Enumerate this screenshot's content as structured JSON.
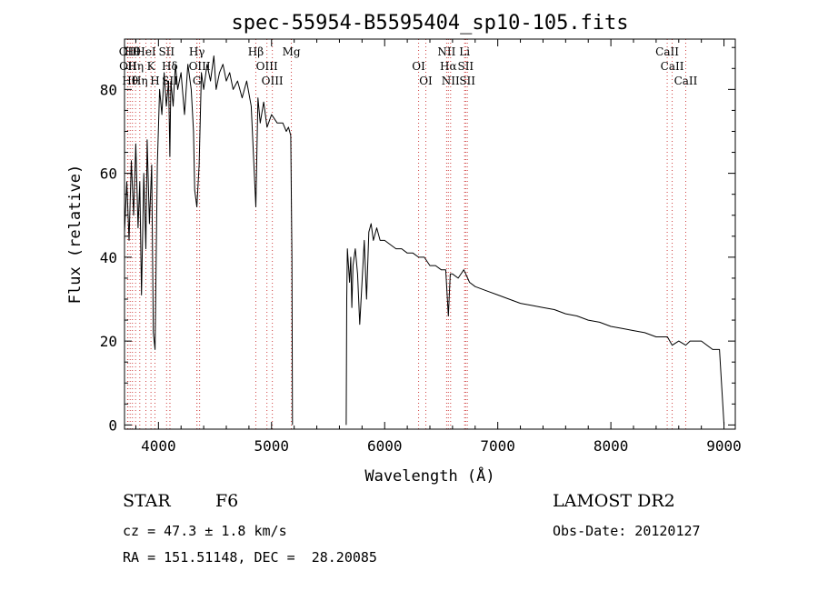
{
  "chart_data": {
    "type": "line",
    "title": "spec-55954-B5595404_sp10-105.fits",
    "xlabel": "Wavelength (Å)",
    "ylabel": "Flux (relative)",
    "xlim": [
      3700,
      9100
    ],
    "ylim": [
      -1,
      92
    ],
    "xticks": [
      4000,
      5000,
      6000,
      7000,
      8000,
      9000
    ],
    "yticks": [
      0,
      20,
      40,
      60,
      80
    ],
    "grid": false,
    "series": [
      {
        "segments": [
          {
            "x": [
              3700,
              3720,
              3740,
              3760,
              3780,
              3800,
              3820,
              3835,
              3850,
              3870,
              3889,
              3900,
              3920,
              3940,
              3955,
              3970,
              3990,
              4010,
              4030,
              4050,
              4070,
              4090,
              4101,
              4110,
              4130,
              4150,
              4170,
              4200,
              4230,
              4260,
              4290,
              4310,
              4320,
              4340,
              4360,
              4380,
              4400,
              4430,
              4460,
              4490,
              4510,
              4540,
              4570,
              4600,
              4630,
              4660,
              4700,
              4740,
              4780,
              4820,
              4861,
              4880,
              4900,
              4930,
              4960,
              5000,
              5050,
              5100,
              5130,
              5150,
              5170,
              5180,
              5185
            ],
            "y": [
              46,
              58,
              44,
              63,
              50,
              67,
              47,
              58,
              31,
              60,
              42,
              68,
              48,
              62,
              22,
              18,
              62,
              80,
              74,
              84,
              76,
              82,
              64,
              82,
              76,
              86,
              80,
              84,
              74,
              86,
              80,
              70,
              56,
              52,
              62,
              84,
              80,
              86,
              82,
              88,
              80,
              84,
              86,
              82,
              84,
              80,
              82,
              78,
              82,
              76,
              52,
              78,
              72,
              77,
              71,
              74,
              72,
              72,
              70,
              71,
              69,
              40,
              0
            ]
          },
          {
            "x": [
              5660,
              5665,
              5670,
              5680,
              5690,
              5700,
              5710,
              5720,
              5740,
              5760,
              5780,
              5800,
              5820,
              5840,
              5860,
              5880,
              5900,
              5930,
              5960,
              6000,
              6050,
              6100,
              6150,
              6200,
              6250,
              6300,
              6350,
              6400,
              6450,
              6500,
              6540,
              6563,
              6580,
              6600,
              6650,
              6700,
              6750,
              6800,
              6900,
              7000,
              7100,
              7200,
              7300,
              7400,
              7500,
              7600,
              7700,
              7800,
              7900,
              8000,
              8100,
              8200,
              8300,
              8400,
              8500,
              8542,
              8600,
              8662,
              8700,
              8800,
              8900,
              8960,
              9000
            ],
            "y": [
              0,
              30,
              42,
              38,
              34,
              40,
              28,
              38,
              42,
              36,
              24,
              34,
              44,
              30,
              46,
              48,
              44,
              47,
              44,
              44,
              43,
              42,
              42,
              41,
              41,
              40,
              40,
              38,
              38,
              37,
              37,
              26,
              36,
              36,
              35,
              37,
              34,
              33,
              32,
              31,
              30,
              29,
              28.5,
              28,
              27.5,
              26.5,
              26,
              25,
              24.5,
              23.5,
              23,
              22.5,
              22,
              21,
              21,
              19,
              20,
              19,
              20,
              20,
              18,
              18,
              0
            ]
          }
        ]
      }
    ],
    "lines": [
      {
        "x": 3727,
        "label": "OII"
      },
      {
        "x": 3730,
        "label": "OII"
      },
      {
        "x": 3750,
        "label": "Hθ"
      },
      {
        "x": 3770,
        "label": "Hθ"
      },
      {
        "x": 3798,
        "label": "Hη"
      },
      {
        "x": 3835,
        "label": "Hη"
      },
      {
        "x": 3889,
        "label": "HeI"
      },
      {
        "x": 3934,
        "label": "K"
      },
      {
        "x": 3969,
        "label": "H"
      },
      {
        "x": 4072,
        "label": "SII"
      },
      {
        "x": 4101,
        "label": "Hδ"
      },
      {
        "x": 4102,
        "label": "SII"
      },
      {
        "x": 4340,
        "label": "Hγ"
      },
      {
        "x": 4364,
        "label": "OIII"
      },
      {
        "x": 4340,
        "label": "G"
      },
      {
        "x": 4861,
        "label": "Hβ"
      },
      {
        "x": 4959,
        "label": "OIII"
      },
      {
        "x": 5007,
        "label": "OIII"
      },
      {
        "x": 5175,
        "label": "Mg"
      },
      {
        "x": 6300,
        "label": "OI"
      },
      {
        "x": 6364,
        "label": "OI"
      },
      {
        "x": 6548,
        "label": "NII"
      },
      {
        "x": 6563,
        "label": "Hα"
      },
      {
        "x": 6583,
        "label": "NII"
      },
      {
        "x": 6707,
        "label": "Li"
      },
      {
        "x": 6716,
        "label": "SII"
      },
      {
        "x": 6731,
        "label": "SII"
      },
      {
        "x": 8498,
        "label": "CaII"
      },
      {
        "x": 8542,
        "label": "CaII"
      },
      {
        "x": 8662,
        "label": "CaII"
      }
    ],
    "line_color": "#000000",
    "marker_color": "#d04040"
  },
  "footer": {
    "class_label": "STAR",
    "subclass_label": "F6",
    "cz_text": "cz = 47.3 ± 1.8 km/s",
    "coords_text": "RA = 151.51148, DEC =  28.20085",
    "survey_text": "LAMOST DR2",
    "obs_date_text": "Obs-Date: 20120127"
  }
}
